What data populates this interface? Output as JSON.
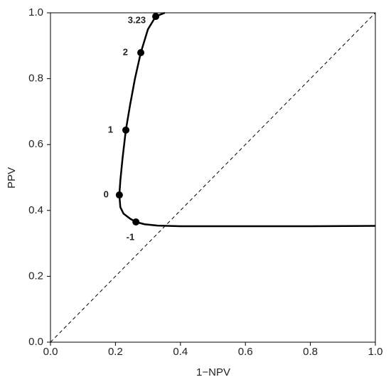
{
  "chart_data": {
    "type": "line",
    "x_label": "1−NPV",
    "y_label": "PPV",
    "xlim": [
      0,
      1
    ],
    "ylim": [
      0,
      1
    ],
    "xticks": [
      {
        "value": 0,
        "label": "0.0"
      },
      {
        "value": 0.2,
        "label": "0.2"
      },
      {
        "value": 0.4,
        "label": "0.4"
      },
      {
        "value": 0.6,
        "label": "0.6"
      },
      {
        "value": 0.8,
        "label": "0.8"
      },
      {
        "value": 1,
        "label": "1.0"
      }
    ],
    "yticks": [
      {
        "value": 0,
        "label": "0.0"
      },
      {
        "value": 0.2,
        "label": "0.2"
      },
      {
        "value": 0.4,
        "label": "0.4"
      },
      {
        "value": 0.6,
        "label": "0.6"
      },
      {
        "value": 0.8,
        "label": "0.8"
      },
      {
        "value": 1,
        "label": "1.0"
      }
    ],
    "series": [
      {
        "color": "#000000",
        "x": [
          0.352,
          0.324,
          0.3,
          0.278,
          0.26,
          0.245,
          0.232,
          0.222,
          0.215,
          0.212,
          0.215,
          0.225,
          0.245,
          0.263,
          0.29,
          0.33,
          0.4,
          0.6,
          0.8,
          1.0
        ],
        "values": [
          1.0,
          0.989,
          0.95,
          0.879,
          0.8,
          0.72,
          0.644,
          0.56,
          0.49,
          0.447,
          0.41,
          0.39,
          0.375,
          0.365,
          0.358,
          0.354,
          0.352,
          0.352,
          0.352,
          0.353
        ]
      }
    ],
    "points": {
      "color": "#000000",
      "x": [
        0.324,
        0.278,
        0.232,
        0.212,
        0.263
      ],
      "values": [
        0.989,
        0.879,
        0.644,
        0.447,
        0.365
      ],
      "labels": [
        "3.23",
        "2",
        "1",
        "0",
        "-1"
      ]
    },
    "reference_line": {
      "x": [
        0,
        1
      ],
      "values": [
        0,
        1
      ],
      "color": "#000000",
      "dashed": true
    }
  }
}
